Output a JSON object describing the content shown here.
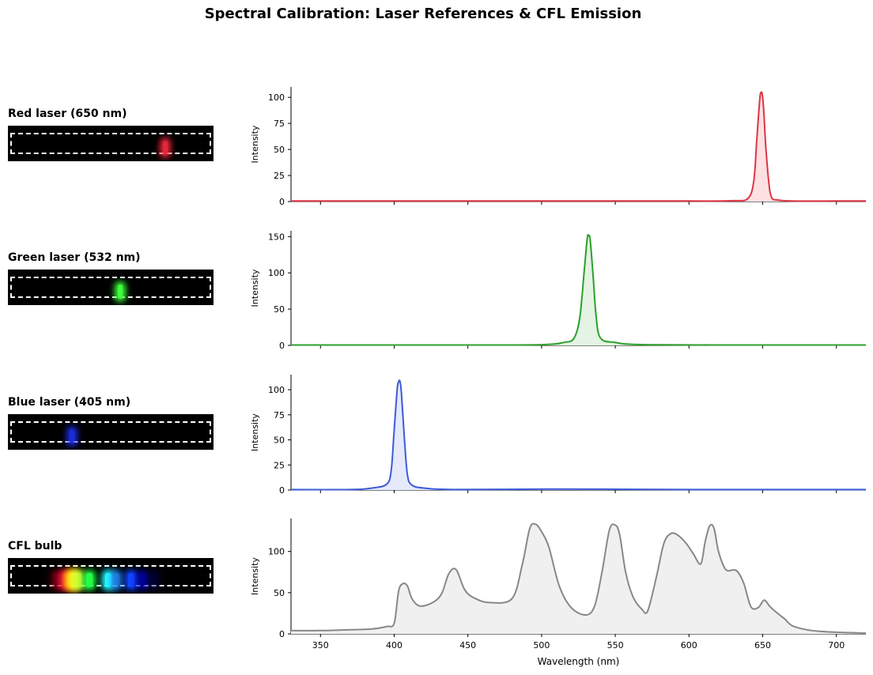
{
  "title": "Spectral Calibration: Laser References & CFL Emission",
  "colors": {
    "red": "#dc3545",
    "red_fill": "#fde0e2",
    "green": "#2ca02c",
    "green_fill": "#e4f3e4",
    "blue": "#3d5bd9",
    "blue_fill": "#e5e9fa",
    "gray": "#888888",
    "gray_fill": "#f0f0f0"
  },
  "chart_data": [
    {
      "type": "area",
      "label": "Red laser (650 nm)",
      "color_key": "red",
      "ylabel": "Intensity",
      "xlim": [
        330,
        720
      ],
      "ylim": [
        0,
        110
      ],
      "yticks": [
        0,
        25,
        50,
        75,
        100
      ],
      "strip_lines": [
        {
          "nm": 650,
          "color": "#ff2a40",
          "intensity": 0.9
        }
      ],
      "x": [
        330,
        500,
        600,
        630,
        640,
        644,
        646,
        648,
        649,
        650,
        651,
        652,
        654,
        656,
        660,
        670,
        700,
        720
      ],
      "y": [
        0.5,
        0.5,
        0.5,
        0.8,
        3,
        20,
        60,
        98,
        105,
        100,
        80,
        55,
        20,
        4,
        1.5,
        0.5,
        0.5,
        0.5
      ]
    },
    {
      "type": "area",
      "label": "Green laser (532 nm)",
      "color_key": "green",
      "ylabel": "Intensity",
      "xlim": [
        330,
        720
      ],
      "ylim": [
        0,
        158
      ],
      "yticks": [
        0,
        50,
        100,
        150
      ],
      "strip_lines": [
        {
          "nm": 532,
          "color": "#3dff3d",
          "intensity": 1
        }
      ],
      "x": [
        330,
        450,
        500,
        515,
        522,
        526,
        529,
        531,
        532,
        533,
        535,
        537,
        540,
        550,
        570,
        650,
        720
      ],
      "y": [
        0.5,
        0.5,
        1,
        4,
        10,
        40,
        105,
        148,
        151,
        145,
        95,
        40,
        10,
        4,
        1,
        0.5,
        0.5
      ]
    },
    {
      "type": "area",
      "label": "Blue laser (405 nm)",
      "color_key": "blue",
      "ylabel": "Intensity",
      "xlim": [
        330,
        720
      ],
      "ylim": [
        0,
        115
      ],
      "yticks": [
        0,
        25,
        50,
        75,
        100
      ],
      "strip_lines": [
        {
          "nm": 405,
          "color": "#2233ff",
          "intensity": 0.85
        }
      ],
      "x": [
        330,
        370,
        385,
        395,
        398,
        400,
        402,
        403,
        404,
        405,
        407,
        409,
        412,
        420,
        440,
        505,
        550,
        600,
        720
      ],
      "y": [
        0.5,
        0.5,
        2,
        6,
        20,
        60,
        100,
        108,
        108,
        95,
        50,
        15,
        5,
        2,
        0.5,
        1,
        0.8,
        0.5,
        0.5
      ]
    },
    {
      "type": "area",
      "label": "CFL bulb",
      "color_key": "gray",
      "ylabel": "Intensity",
      "xlabel": "Wavelength (nm)",
      "xlim": [
        330,
        720
      ],
      "ylim": [
        0,
        140
      ],
      "yticks": [
        0,
        50,
        100
      ],
      "xticks": [
        350,
        400,
        450,
        500,
        550,
        600,
        650,
        700
      ],
      "strip_lines": [
        {
          "nm": 360,
          "color": "#800010",
          "intensity": 0.4
        },
        {
          "nm": 375,
          "color": "#d00030",
          "intensity": 0.6
        },
        {
          "nm": 390,
          "color": "#ff1040",
          "intensity": 0.9
        },
        {
          "nm": 400,
          "color": "#ffaa00",
          "intensity": 1
        },
        {
          "nm": 410,
          "color": "#ffee22",
          "intensity": 1
        },
        {
          "nm": 420,
          "color": "#ccff33",
          "intensity": 0.9
        },
        {
          "nm": 450,
          "color": "#22ff44",
          "intensity": 1
        },
        {
          "nm": 500,
          "color": "#22ffff",
          "intensity": 1
        },
        {
          "nm": 520,
          "color": "#2288ff",
          "intensity": 0.8
        },
        {
          "nm": 560,
          "color": "#1144ff",
          "intensity": 1
        },
        {
          "nm": 590,
          "color": "#0000cc",
          "intensity": 0.7
        },
        {
          "nm": 620,
          "color": "#000066",
          "intensity": 0.4
        }
      ],
      "x": [
        330,
        350,
        370,
        385,
        395,
        400,
        403,
        406,
        409,
        412,
        417,
        425,
        432,
        437,
        442,
        448,
        455,
        465,
        480,
        487,
        492,
        496,
        500,
        505,
        512,
        520,
        530,
        536,
        541,
        546,
        550,
        553,
        557,
        562,
        568,
        572,
        578,
        583,
        588,
        593,
        598,
        603,
        608,
        611,
        614,
        617,
        620,
        625,
        632,
        637,
        642,
        647,
        651,
        655,
        660,
        665,
        670,
        680,
        690,
        700,
        720
      ],
      "y": [
        4,
        4,
        5,
        6,
        9,
        13,
        52,
        61,
        58,
        43,
        34,
        37,
        48,
        73,
        78,
        53,
        43,
        38,
        43,
        85,
        128,
        133,
        124,
        105,
        58,
        32,
        23,
        34,
        75,
        126,
        132,
        120,
        75,
        45,
        30,
        28,
        70,
        110,
        122,
        119,
        110,
        97,
        85,
        112,
        131,
        128,
        100,
        78,
        77,
        62,
        33,
        32,
        41,
        33,
        25,
        18,
        10,
        5,
        3,
        2,
        1
      ]
    }
  ]
}
